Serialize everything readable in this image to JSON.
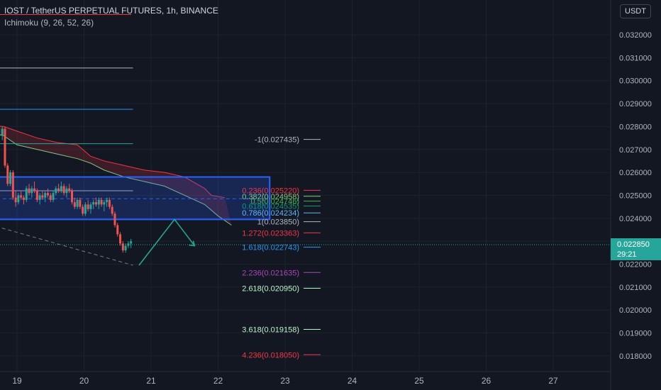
{
  "header": {
    "title": "IOST / TetherUS PERPETUAL FUTURES, 1h, BINANCE",
    "indicator": "Ichimoku (9, 26, 52, 26)"
  },
  "currency_button": "USDT",
  "current_price": {
    "value": "0.022850",
    "countdown": "29:21",
    "color": "#26a69a"
  },
  "colors": {
    "background": "#131722",
    "axis_text": "#b2b5be",
    "grid": "#1e222d",
    "cloud_upper": "#f23645",
    "cloud_lower": "#81c784",
    "rectangle": "#2962ff",
    "projection": "#22ab94"
  },
  "chart_data": {
    "type": "candlestick",
    "symbol": "IOST/USDT",
    "interval": "1h",
    "y_axis": {
      "min": 0.0173,
      "max": 0.0332,
      "ticks": [
        "0.032000",
        "0.031000",
        "0.030000",
        "0.029000",
        "0.028000",
        "0.027000",
        "0.026000",
        "0.025000",
        "0.024000",
        "0.023000",
        "0.022000",
        "0.021000",
        "0.020000",
        "0.019000",
        "0.018000"
      ]
    },
    "x_axis": {
      "ticks": [
        {
          "label": "19",
          "day": 19
        },
        {
          "label": "20",
          "day": 20
        },
        {
          "label": "21",
          "day": 21
        },
        {
          "label": "22",
          "day": 22
        },
        {
          "label": "23",
          "day": 23
        },
        {
          "label": "24",
          "day": 24
        },
        {
          "label": "25",
          "day": 25
        },
        {
          "label": "26",
          "day": 26
        },
        {
          "label": "27",
          "day": 27
        }
      ]
    },
    "candles": [
      [
        18.78,
        0.0276,
        0.028,
        0.0274,
        0.0279
      ],
      [
        18.82,
        0.0279,
        0.028,
        0.0262,
        0.0263
      ],
      [
        18.86,
        0.0263,
        0.0264,
        0.0254,
        0.0255
      ],
      [
        18.9,
        0.0255,
        0.0261,
        0.0254,
        0.026
      ],
      [
        18.94,
        0.026,
        0.0261,
        0.0248,
        0.0249
      ],
      [
        18.98,
        0.0249,
        0.0252,
        0.0245,
        0.0247
      ],
      [
        19.02,
        0.0247,
        0.0251,
        0.0246,
        0.025
      ],
      [
        19.06,
        0.025,
        0.0252,
        0.0248,
        0.0249
      ],
      [
        19.1,
        0.0249,
        0.025,
        0.0246,
        0.0248
      ],
      [
        19.14,
        0.0248,
        0.0254,
        0.0247,
        0.0253
      ],
      [
        19.18,
        0.0253,
        0.0255,
        0.025,
        0.0251
      ],
      [
        19.22,
        0.0251,
        0.0254,
        0.0249,
        0.0253
      ],
      [
        19.26,
        0.0253,
        0.0256,
        0.0251,
        0.0252
      ],
      [
        19.3,
        0.0252,
        0.0253,
        0.0247,
        0.0248
      ],
      [
        19.34,
        0.0248,
        0.0251,
        0.0246,
        0.025
      ],
      [
        19.38,
        0.025,
        0.0252,
        0.0248,
        0.0249
      ],
      [
        19.42,
        0.0249,
        0.0252,
        0.0247,
        0.0251
      ],
      [
        19.46,
        0.0251,
        0.0253,
        0.0249,
        0.025
      ],
      [
        19.5,
        0.025,
        0.0251,
        0.0247,
        0.0248
      ],
      [
        19.54,
        0.0248,
        0.0252,
        0.0247,
        0.0251
      ],
      [
        19.58,
        0.0251,
        0.0254,
        0.025,
        0.0253
      ],
      [
        19.62,
        0.0253,
        0.0255,
        0.0251,
        0.0252
      ],
      [
        19.66,
        0.0252,
        0.0256,
        0.0251,
        0.0254
      ],
      [
        19.7,
        0.0254,
        0.0255,
        0.025,
        0.0251
      ],
      [
        19.74,
        0.0251,
        0.0254,
        0.0249,
        0.0253
      ],
      [
        19.78,
        0.0253,
        0.0255,
        0.0251,
        0.0252
      ],
      [
        19.82,
        0.0252,
        0.0253,
        0.0246,
        0.0247
      ],
      [
        19.86,
        0.0247,
        0.0249,
        0.0244,
        0.0245
      ],
      [
        19.9,
        0.0245,
        0.0249,
        0.0244,
        0.0248
      ],
      [
        19.94,
        0.0248,
        0.0249,
        0.0244,
        0.0245
      ],
      [
        19.98,
        0.0245,
        0.0246,
        0.0241,
        0.0242
      ],
      [
        20.02,
        0.0242,
        0.0247,
        0.0241,
        0.0246
      ],
      [
        20.06,
        0.0246,
        0.0248,
        0.0243,
        0.0244
      ],
      [
        20.1,
        0.0244,
        0.0247,
        0.0242,
        0.0246
      ],
      [
        20.14,
        0.0246,
        0.0248,
        0.0244,
        0.0247
      ],
      [
        20.18,
        0.0247,
        0.0249,
        0.0245,
        0.0246
      ],
      [
        20.22,
        0.0246,
        0.0249,
        0.0244,
        0.0248
      ],
      [
        20.26,
        0.0248,
        0.0249,
        0.0245,
        0.0246
      ],
      [
        20.3,
        0.0246,
        0.0248,
        0.0243,
        0.0247
      ],
      [
        20.34,
        0.0247,
        0.0249,
        0.0245,
        0.0248
      ],
      [
        20.38,
        0.0248,
        0.0249,
        0.0244,
        0.0245
      ],
      [
        20.42,
        0.0245,
        0.0246,
        0.0241,
        0.0242
      ],
      [
        20.46,
        0.0242,
        0.0243,
        0.0236,
        0.0237
      ],
      [
        20.5,
        0.0237,
        0.0238,
        0.0232,
        0.0233
      ],
      [
        20.54,
        0.0233,
        0.0234,
        0.0228,
        0.0229
      ],
      [
        20.58,
        0.0229,
        0.023,
        0.0225,
        0.0226
      ],
      [
        20.62,
        0.0226,
        0.0229,
        0.0225,
        0.0228
      ],
      [
        20.66,
        0.0228,
        0.023,
        0.0227,
        0.0229
      ],
      [
        20.7,
        0.0229,
        0.0231,
        0.0227,
        0.023
      ]
    ],
    "cloud": {
      "upper_x": [
        18.5,
        18.8,
        19.0,
        19.3,
        19.6,
        19.9,
        20.1,
        20.3,
        20.6,
        20.9,
        21.2,
        21.5,
        21.8,
        21.9,
        22.1
      ],
      "upper_y": [
        0.0281,
        0.028,
        0.0278,
        0.0275,
        0.0273,
        0.0272,
        0.0267,
        0.0265,
        0.0263,
        0.0261,
        0.026,
        0.0258,
        0.0253,
        0.025,
        0.0249
      ],
      "lower_x": [
        18.5,
        18.8,
        19.0,
        19.3,
        19.6,
        19.9,
        20.1,
        20.3,
        20.6,
        20.9,
        21.2,
        21.5,
        21.8,
        22.0,
        22.2
      ],
      "lower_y": [
        0.0278,
        0.0276,
        0.0272,
        0.027,
        0.0268,
        0.0266,
        0.0264,
        0.0261,
        0.0258,
        0.0256,
        0.0254,
        0.025,
        0.0246,
        0.0241,
        0.0237
      ]
    },
    "horizontal_lines": [
      {
        "x0": 18.5,
        "x1": 20.73,
        "y": 0.03055,
        "color": "#b2b5be"
      },
      {
        "x0": 18.5,
        "x1": 20.73,
        "y": 0.02875,
        "color": "#2196f3"
      },
      {
        "x0": 18.5,
        "x1": 20.73,
        "y": 0.02725,
        "color": "#26a69a"
      },
      {
        "x0": 18.5,
        "x1": 20.73,
        "y": 0.0252,
        "color": "#b2b5be"
      }
    ],
    "rectangle": {
      "x0": 18.5,
      "x1": 22.77,
      "y_top": 0.0258,
      "y_bottom": 0.02395
    },
    "dashed_level": 0.02485,
    "trendline_dashed": {
      "x": [
        18.5,
        20.73
      ],
      "y": [
        0.0238,
        0.02195
      ]
    },
    "projection_path": {
      "x": [
        20.82,
        21.35,
        21.65
      ],
      "y": [
        0.02195,
        0.02395,
        0.0228
      ]
    },
    "fib_levels": [
      {
        "label": "-1(0.027435)",
        "value": 0.027435,
        "color": "#b2b5be"
      },
      {
        "label": "0.236(0.025220)",
        "value": 0.02522,
        "color": "#f23645"
      },
      {
        "label": "0.382(0.024958)",
        "value": 0.024958,
        "color": "#81c784"
      },
      {
        "label": "0.5(0.024746)",
        "value": 0.024746,
        "color": "#4caf50"
      },
      {
        "label": "0.618(0.024535)",
        "value": 0.024535,
        "color": "#089981"
      },
      {
        "label": "0.786(0.024234)",
        "value": 0.024234,
        "color": "#64b5f6"
      },
      {
        "label": "1(0.023850)",
        "value": 0.02385,
        "color": "#b2b5be"
      },
      {
        "label": "1.272(0.023363)",
        "value": 0.023363,
        "color": "#f23645"
      },
      {
        "label": "1.618(0.022743)",
        "value": 0.022743,
        "color": "#2196f3"
      },
      {
        "label": "2.236(0.021635)",
        "value": 0.021635,
        "color": "#ab47bc"
      },
      {
        "label": "2.618(0.020950)",
        "value": 0.02095,
        "color": "#b9f6ca"
      },
      {
        "label": "3.618(0.019158)",
        "value": 0.019158,
        "color": "#b9f6ca"
      },
      {
        "label": "4.236(0.018050)",
        "value": 0.01805,
        "color": "#f23645"
      }
    ],
    "current_price_line": 0.02285
  }
}
